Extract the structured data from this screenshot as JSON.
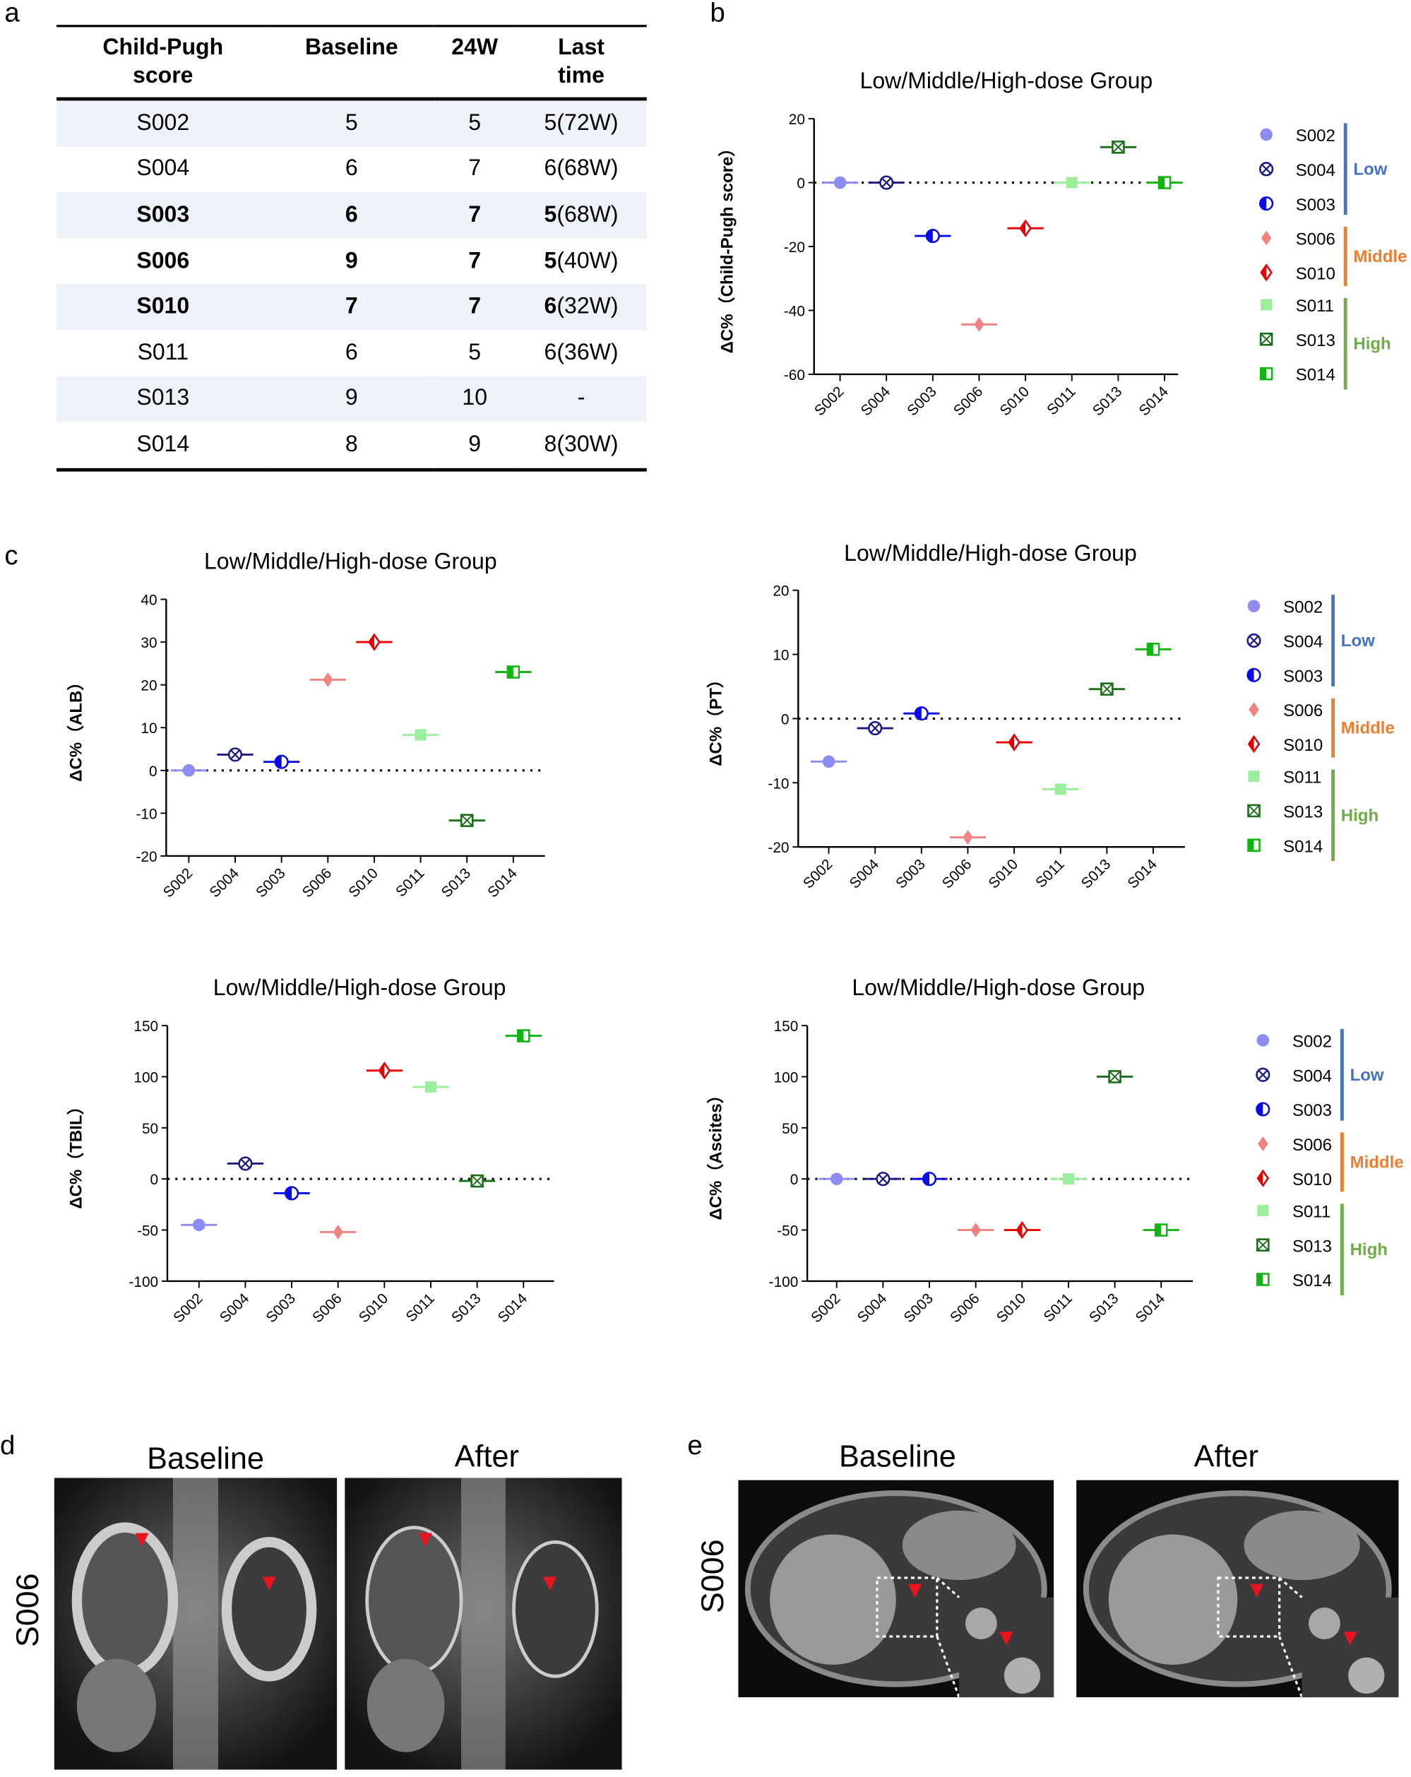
{
  "panels": {
    "a": "a",
    "b": "b",
    "c": "c",
    "d": "d",
    "e": "e"
  },
  "table": {
    "headers": [
      [
        "Child-Pugh",
        "score"
      ],
      [
        "Baseline"
      ],
      [
        "24W"
      ],
      [
        "Last",
        "time"
      ]
    ],
    "rows": [
      {
        "id": "S002",
        "baseline": "5",
        "w24": "5",
        "last_bold": "",
        "last": "5(72W)",
        "bold": false
      },
      {
        "id": "S004",
        "baseline": "6",
        "w24": "7",
        "last_bold": "",
        "last": "6(68W)",
        "bold": false
      },
      {
        "id": "S003",
        "baseline": "6",
        "w24": "7",
        "last_bold": "5",
        "last": "(68W)",
        "bold": true
      },
      {
        "id": "S006",
        "baseline": "9",
        "w24": "7",
        "last_bold": "5",
        "last": "(40W)",
        "bold": true
      },
      {
        "id": "S010",
        "baseline": "7",
        "w24": "7",
        "last_bold": "6",
        "last": "(32W)",
        "bold": true
      },
      {
        "id": "S011",
        "baseline": "6",
        "w24": "5",
        "last_bold": "",
        "last": "6(36W)",
        "bold": false
      },
      {
        "id": "S013",
        "baseline": "9",
        "w24": "10",
        "last_bold": "",
        "last": "-",
        "bold": false
      },
      {
        "id": "S014",
        "baseline": "8",
        "w24": "9",
        "last_bold": "",
        "last": "8(30W)",
        "bold": false
      }
    ]
  },
  "series_styles": [
    {
      "name": "S002",
      "marker": "filled-circle",
      "color": "#8c8cf2"
    },
    {
      "name": "S004",
      "marker": "crossed-circle",
      "color": "#1b1b86"
    },
    {
      "name": "S003",
      "marker": "half-filled-circle",
      "color": "#0a0ae6"
    },
    {
      "name": "S006",
      "marker": "filled-diamond",
      "color": "#f08282"
    },
    {
      "name": "S010",
      "marker": "half-filled-diamond",
      "color": "#e60000"
    },
    {
      "name": "S011",
      "marker": "filled-square",
      "color": "#9cee9c"
    },
    {
      "name": "S013",
      "marker": "crossed-square",
      "color": "#1a6e1a"
    },
    {
      "name": "S014",
      "marker": "half-filled-square",
      "color": "#12b412"
    }
  ],
  "legend_groups": [
    {
      "label": "Low",
      "color": "#4472c4",
      "members": [
        "S002",
        "S004",
        "S003"
      ]
    },
    {
      "label": "Middle",
      "color": "#ed7d31",
      "members": [
        "S006",
        "S010"
      ]
    },
    {
      "label": "High",
      "color": "#70ad47",
      "members": [
        "S011",
        "S013",
        "S014"
      ]
    }
  ],
  "chart_data": [
    {
      "type": "scatter",
      "title": "Low/Middle/High-dose Group",
      "ylabel": "ΔC%（Child-Pugh score）",
      "categories": [
        "S002",
        "S004",
        "S003",
        "S006",
        "S010",
        "S011",
        "S013",
        "S014"
      ],
      "values": [
        0,
        0,
        -16.7,
        -44.4,
        -14.3,
        0,
        11.1,
        0
      ],
      "ylim": [
        -60,
        20
      ],
      "yticks": [
        "20",
        "0",
        "-20",
        "-40",
        "-60"
      ],
      "reference_line": 0,
      "legend": "right",
      "grid": false
    },
    {
      "type": "scatter",
      "title": "Low/Middle/High-dose Group",
      "ylabel": "ΔC%（ALB）",
      "categories": [
        "S002",
        "S004",
        "S003",
        "S006",
        "S010",
        "S011",
        "S013",
        "S014"
      ],
      "values": [
        0,
        3.7,
        2,
        21.2,
        30,
        8.3,
        -11.7,
        23
      ],
      "ylim": [
        -20,
        40
      ],
      "yticks": [
        "40",
        "30",
        "20",
        "10",
        "0",
        "-10",
        "-20"
      ],
      "reference_line": 0,
      "grid": false
    },
    {
      "type": "scatter",
      "title": "Low/Middle/High-dose Group",
      "ylabel": "ΔC%（PT）",
      "categories": [
        "S002",
        "S004",
        "S003",
        "S006",
        "S010",
        "S011",
        "S013",
        "S014"
      ],
      "values": [
        -6.7,
        -1.5,
        0.8,
        -18.5,
        -3.7,
        -11,
        4.6,
        10.8
      ],
      "ylim": [
        -20,
        20
      ],
      "yticks": [
        "20",
        "10",
        "0",
        "-10",
        "-20"
      ],
      "reference_line": 0,
      "legend": "right",
      "grid": false
    },
    {
      "type": "scatter",
      "title": "Low/Middle/High-dose Group",
      "ylabel": "ΔC%（TBIL）",
      "categories": [
        "S002",
        "S004",
        "S003",
        "S006",
        "S010",
        "S011",
        "S013",
        "S014"
      ],
      "values": [
        -45,
        15,
        -14,
        -52,
        106,
        90,
        -2,
        140
      ],
      "ylim": [
        -100,
        150
      ],
      "yticks": [
        "150",
        "100",
        "50",
        "0",
        "-50",
        "-100"
      ],
      "reference_line": 0,
      "grid": false
    },
    {
      "type": "scatter",
      "title": "Low/Middle/High-dose Group",
      "ylabel": "ΔC%（Ascites）",
      "categories": [
        "S002",
        "S004",
        "S003",
        "S006",
        "S010",
        "S011",
        "S013",
        "S014"
      ],
      "values": [
        0,
        0,
        0,
        -50,
        -50,
        0,
        100,
        -50
      ],
      "ylim": [
        -100,
        150
      ],
      "yticks": [
        "150",
        "100",
        "50",
        "0",
        "-50",
        "-100"
      ],
      "reference_line": 0,
      "legend": "right",
      "grid": false
    }
  ],
  "images": {
    "d": {
      "row_label": "S006",
      "baseline": "Baseline",
      "after": "After"
    },
    "e": {
      "row_label": "S006",
      "baseline": "Baseline",
      "after": "After"
    },
    "arrow_color": "#e8141e"
  }
}
